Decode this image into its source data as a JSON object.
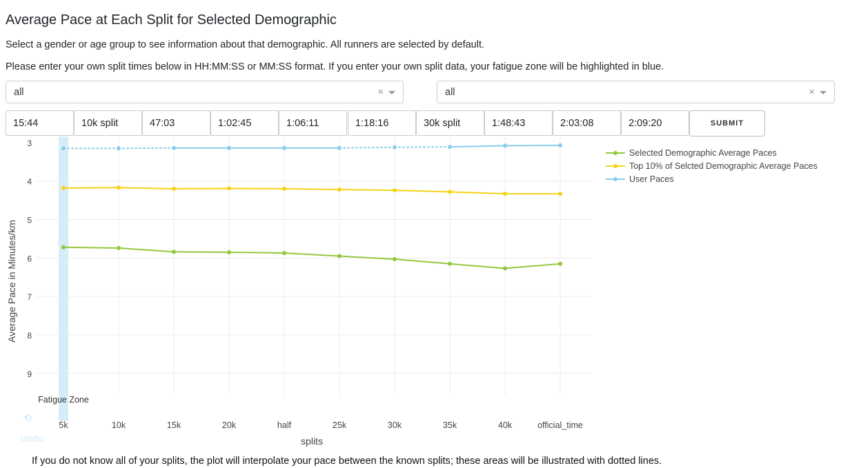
{
  "page": {
    "title": "Average Pace at Each Split for Selected Demographic",
    "instruction": "Select a gender or age group to see information about that demographic. All runners are selected by default.",
    "split_instruction": "Please enter your own split times below in HH:MM:SS or MM:SS format. If you enter your own split data, your fatigue zone will be highlighted in blue.",
    "footnote": "If you do not know all of your splits, the plot will interpolate your pace between the known splits; these areas will be illustrated with dotted lines."
  },
  "filters": {
    "gender": {
      "value": "all",
      "clear": "×"
    },
    "age_group": {
      "value": "all",
      "clear": "×"
    }
  },
  "split_inputs": [
    {
      "value": "15:44",
      "placeholder": ""
    },
    {
      "value": "",
      "placeholder": "10k split"
    },
    {
      "value": "47:03",
      "placeholder": ""
    },
    {
      "value": "1:02:45",
      "placeholder": ""
    },
    {
      "value": "1:06:11",
      "placeholder": ""
    },
    {
      "value": "1:18:16",
      "placeholder": ""
    },
    {
      "value": "",
      "placeholder": "30k split"
    },
    {
      "value": "1:48:43",
      "placeholder": ""
    },
    {
      "value": "2:03:08",
      "placeholder": ""
    },
    {
      "value": "2:09:20",
      "placeholder": ""
    }
  ],
  "submit_label": "SUBMIT",
  "undo": {
    "icon": "undo-icon",
    "label": "undo"
  },
  "chart_data": {
    "type": "line",
    "categories": [
      "5k",
      "10k",
      "15k",
      "20k",
      "half",
      "25k",
      "30k",
      "35k",
      "40k",
      "official_time"
    ],
    "xlabel": "splits",
    "ylabel": "Average Pace in Minutes/km",
    "ylim": [
      10,
      3
    ],
    "y_reversed": true,
    "yticks": [
      3,
      4,
      5,
      6,
      7,
      8,
      9
    ],
    "grid": true,
    "legend_position": "top-right",
    "series": [
      {
        "name": "Selected Demographic Average Paces",
        "color": "#93c83e",
        "values": [
          5.72,
          5.74,
          5.84,
          5.85,
          5.87,
          5.95,
          6.03,
          6.15,
          6.27,
          6.15
        ]
      },
      {
        "name": "Top 10% of Selcted Demographic Average Paces",
        "color": "#f5d314",
        "values": [
          4.18,
          4.17,
          4.2,
          4.19,
          4.2,
          4.22,
          4.24,
          4.28,
          4.33,
          4.33
        ]
      },
      {
        "name": "User Paces",
        "color": "#87ceeb",
        "values": [
          3.15,
          3.15,
          3.14,
          3.14,
          3.14,
          3.14,
          3.12,
          3.11,
          3.08,
          3.07
        ],
        "dotted_segments": [
          [
            0,
            2
          ],
          [
            5,
            7
          ]
        ]
      }
    ],
    "annotations": [
      {
        "text": "Fatigue Zone",
        "category": "5k"
      }
    ],
    "fatigue_zone_color": "#d6ecf9"
  }
}
